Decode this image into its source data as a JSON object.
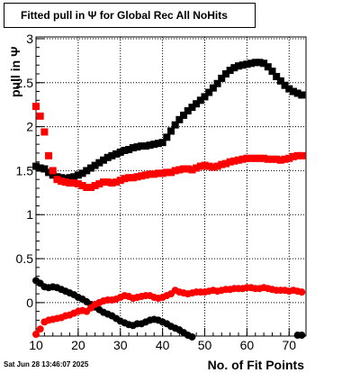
{
  "title": "Fitted pull in  Ψ  for Global Rec All NoHits",
  "footer": "Sat Jun 28 13:46:07 2025",
  "chart_data": {
    "type": "scatter",
    "title": "Fitted pull in  Ψ  for Global Rec All NoHits",
    "xlabel": "No. of Fit Points",
    "ylabel": "pull in  Ψ",
    "xlim": [
      10,
      74
    ],
    "ylim": [
      -0.38,
      3.02
    ],
    "x_ticks": [
      10,
      20,
      30,
      40,
      50,
      60,
      70
    ],
    "y_ticks": [
      0,
      0.5,
      1,
      1.5,
      2,
      2.5,
      3
    ],
    "x_tick_labels": [
      "10",
      "20",
      "30",
      "40",
      "50",
      "60",
      "70"
    ],
    "y_tick_labels": [
      "0",
      "0.5",
      "1",
      "1.5",
      "2",
      "2.5",
      "3"
    ],
    "grid": true,
    "legend": "none",
    "series": [
      {
        "color": "#000000",
        "marker": "square",
        "x": [
          10,
          11,
          12,
          13,
          14,
          15,
          16,
          17,
          18,
          19,
          20,
          21,
          22,
          23,
          24,
          25,
          26,
          27,
          28,
          29,
          30,
          31,
          32,
          33,
          34,
          35,
          36,
          37,
          38,
          39,
          40,
          41,
          42,
          43,
          44,
          45,
          46,
          47,
          48,
          49,
          50,
          51,
          52,
          53,
          54,
          55,
          56,
          57,
          58,
          59,
          60,
          61,
          62,
          63,
          64,
          65,
          66,
          67,
          68,
          69,
          70,
          71,
          72,
          73
        ],
        "values": [
          1.55,
          1.53,
          1.52,
          1.48,
          1.45,
          1.43,
          1.42,
          1.41,
          1.42,
          1.43,
          1.45,
          1.47,
          1.5,
          1.53,
          1.56,
          1.59,
          1.62,
          1.65,
          1.67,
          1.69,
          1.71,
          1.73,
          1.74,
          1.76,
          1.77,
          1.78,
          1.78,
          1.79,
          1.8,
          1.81,
          1.82,
          1.88,
          1.95,
          2.02,
          2.08,
          2.13,
          2.18,
          2.22,
          2.26,
          2.3,
          2.34,
          2.39,
          2.44,
          2.49,
          2.55,
          2.6,
          2.64,
          2.67,
          2.69,
          2.7,
          2.71,
          2.72,
          2.73,
          2.73,
          2.72,
          2.68,
          2.63,
          2.57,
          2.52,
          2.47,
          2.43,
          2.4,
          2.38,
          2.36
        ]
      },
      {
        "color": "#ff0000",
        "marker": "square",
        "x": [
          10,
          11,
          12,
          13,
          14,
          15,
          16,
          17,
          18,
          19,
          20,
          21,
          22,
          23,
          24,
          25,
          26,
          27,
          28,
          29,
          30,
          31,
          32,
          33,
          34,
          35,
          36,
          37,
          38,
          39,
          40,
          41,
          42,
          43,
          44,
          45,
          46,
          47,
          48,
          49,
          50,
          51,
          52,
          53,
          54,
          55,
          56,
          57,
          58,
          59,
          60,
          61,
          62,
          63,
          64,
          65,
          66,
          67,
          68,
          69,
          70,
          71,
          72,
          73
        ],
        "values": [
          2.23,
          2.12,
          1.94,
          1.67,
          1.5,
          1.4,
          1.38,
          1.37,
          1.36,
          1.36,
          1.35,
          1.33,
          1.31,
          1.31,
          1.33,
          1.35,
          1.37,
          1.37,
          1.36,
          1.37,
          1.39,
          1.41,
          1.42,
          1.42,
          1.43,
          1.44,
          1.45,
          1.46,
          1.46,
          1.47,
          1.47,
          1.48,
          1.48,
          1.5,
          1.51,
          1.52,
          1.52,
          1.51,
          1.53,
          1.55,
          1.56,
          1.55,
          1.54,
          1.55,
          1.57,
          1.58,
          1.6,
          1.61,
          1.62,
          1.63,
          1.64,
          1.64,
          1.64,
          1.64,
          1.64,
          1.63,
          1.63,
          1.63,
          1.62,
          1.63,
          1.64,
          1.66,
          1.67,
          1.67
        ]
      },
      {
        "color": "#000000",
        "marker": "circle",
        "x": [
          10,
          11,
          12,
          13,
          14,
          15,
          16,
          17,
          18,
          19,
          20,
          21,
          22,
          23,
          24,
          25,
          26,
          27,
          28,
          29,
          30,
          31,
          32,
          33,
          34,
          35,
          36,
          37,
          38,
          39,
          40,
          41,
          42,
          43,
          44,
          45,
          46,
          47,
          72,
          73
        ],
        "values": [
          0.25,
          0.22,
          0.18,
          0.17,
          0.18,
          0.17,
          0.15,
          0.13,
          0.11,
          0.09,
          0.06,
          0.04,
          0.01,
          -0.02,
          -0.05,
          -0.08,
          -0.11,
          -0.13,
          -0.15,
          -0.18,
          -0.21,
          -0.23,
          -0.25,
          -0.26,
          -0.24,
          -0.24,
          -0.22,
          -0.2,
          -0.19,
          -0.2,
          -0.22,
          -0.24,
          -0.27,
          -0.29,
          -0.31,
          -0.34,
          -0.37,
          -0.39,
          -0.37,
          -0.37
        ]
      },
      {
        "color": "#ff0000",
        "marker": "circle",
        "x": [
          10,
          11,
          12,
          13,
          14,
          15,
          16,
          17,
          18,
          19,
          20,
          21,
          22,
          23,
          24,
          25,
          26,
          27,
          28,
          29,
          30,
          31,
          32,
          33,
          34,
          35,
          36,
          37,
          38,
          39,
          40,
          41,
          42,
          43,
          44,
          45,
          46,
          47,
          48,
          49,
          50,
          51,
          52,
          53,
          54,
          55,
          56,
          57,
          58,
          59,
          60,
          61,
          62,
          63,
          64,
          65,
          66,
          67,
          68,
          69,
          70,
          71,
          72,
          73
        ],
        "values": [
          -0.36,
          -0.3,
          -0.22,
          -0.2,
          -0.19,
          -0.18,
          -0.17,
          -0.15,
          -0.14,
          -0.12,
          -0.1,
          -0.09,
          -0.1,
          -0.06,
          -0.02,
          0.0,
          0.02,
          0.03,
          0.03,
          0.04,
          0.06,
          0.08,
          0.07,
          0.05,
          0.06,
          0.07,
          0.08,
          0.08,
          0.06,
          0.05,
          0.06,
          0.08,
          0.1,
          0.14,
          0.12,
          0.11,
          0.1,
          0.11,
          0.12,
          0.12,
          0.12,
          0.13,
          0.14,
          0.13,
          0.14,
          0.15,
          0.15,
          0.16,
          0.16,
          0.16,
          0.17,
          0.17,
          0.16,
          0.16,
          0.17,
          0.16,
          0.15,
          0.14,
          0.14,
          0.14,
          0.13,
          0.14,
          0.13,
          0.12
        ]
      }
    ]
  }
}
